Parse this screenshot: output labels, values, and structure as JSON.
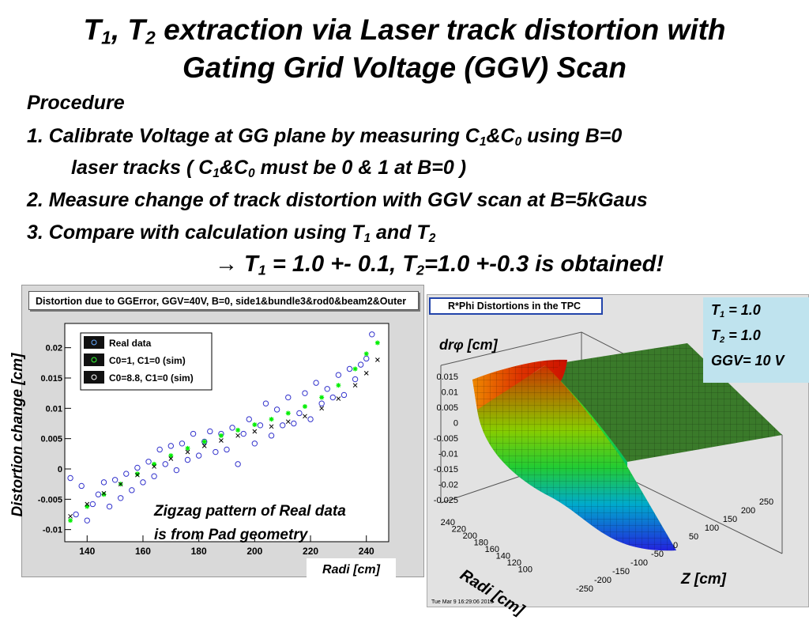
{
  "title": {
    "line1_a": "T",
    "line1_sub1": "1",
    "line1_b": ", T",
    "line1_sub2": "2",
    "line1_c": " extraction via Laser track distortion with",
    "line2": "Gating Grid Voltage (GGV) Scan"
  },
  "procedure": {
    "heading": "Procedure",
    "step1_a": "1.   Calibrate Voltage at GG plane  by measuring C",
    "step1_sub1": "1",
    "step1_b": "&C",
    "step1_sub2": "0",
    "step1_c": " using B=0",
    "step1b_a": "laser tracks  ( C",
    "step1b_sub1": "1",
    "step1b_b": "&C",
    "step1b_sub2": "0",
    "step1b_c": " must be 0 & 1 at B=0 )",
    "step2": "2.  Measure change of track distortion with GGV scan at B=5kGaus",
    "step3_a": "3.  Compare with calculation using T",
    "step3_sub1": "1",
    "step3_b": " and T",
    "step3_sub2": "2"
  },
  "result": {
    "arrow": "→",
    "a": " T",
    "sub1": "1",
    "b": " = 1.0 +- 0.1,  T",
    "sub2": "2",
    "c": "=1.0 +-0.3  is obtained!"
  },
  "left_plot": {
    "frame_title": "Distortion due to GGError, GGV=40V, B=0, side1&bundle3&rod0&beam2&Outer",
    "ylabel": "Distortion change  [cm]",
    "xlabel": "Radi [cm]",
    "annotation_1": "Zigzag pattern of Real data",
    "annotation_2": "is from Pad geometry"
  },
  "right_plot": {
    "frame_title": "R*Phi Distortions in the TPC",
    "zlabel_a": "dr",
    "zlabel_phi": "φ",
    "zlabel_b": " [cm]",
    "radi_label": "Radi [cm]",
    "z_label": "Z [cm]",
    "timestamp": "Tue Mar  9 16:29:06 2010",
    "z_ticks": [
      "0.015",
      "0.01",
      "0.005",
      "0",
      "-0.005",
      "-0.01",
      "-0.015",
      "-0.02",
      "-0.025"
    ],
    "radi_ticks": [
      "240",
      "220",
      "200",
      "180",
      "160",
      "140",
      "120",
      "100"
    ],
    "zaxis_ticks": [
      "-250",
      "-200",
      "-150",
      "-100",
      "-50",
      "0",
      "50",
      "100",
      "150",
      "200",
      "250"
    ]
  },
  "info_box": {
    "t1_a": "T",
    "t1_sub": "1",
    "t1_b": " = 1.0",
    "t2_a": "T",
    "t2_sub": "2",
    "t2_b": " = 1.0",
    "ggv": "GGV= 10 V"
  },
  "chart_data": [
    {
      "type": "scatter",
      "title": "Distortion due to GGError, GGV=40V, B=0, side1&bundle3&rod0&beam2&Outer",
      "xlabel": "Radi [cm]",
      "ylabel": "Distortion change  [cm]",
      "xlim": [
        132,
        248
      ],
      "ylim": [
        -0.012,
        0.024
      ],
      "x_ticks": [
        140,
        160,
        180,
        200,
        220,
        240
      ],
      "y_ticks": [
        -0.01,
        -0.005,
        0,
        0.005,
        0.01,
        0.015,
        0.02
      ],
      "y_tick_labels": [
        "-0.01",
        "-0.005",
        "0",
        "0.005",
        "0.01",
        "0.015",
        "0.02"
      ],
      "legend_position": "top-left",
      "series": [
        {
          "name": "Real data",
          "color": "#3333cc",
          "marker": "open-circle",
          "x": [
            134,
            136,
            138,
            140,
            142,
            144,
            146,
            148,
            150,
            152,
            154,
            156,
            158,
            160,
            162,
            164,
            166,
            168,
            170,
            172,
            174,
            176,
            178,
            180,
            182,
            184,
            186,
            188,
            190,
            192,
            194,
            196,
            198,
            200,
            202,
            204,
            206,
            208,
            210,
            212,
            214,
            216,
            218,
            220,
            222,
            224,
            226,
            228,
            230,
            232,
            234,
            236,
            238,
            240,
            242
          ],
          "y": [
            -0.0015,
            -0.0075,
            -0.0028,
            -0.0085,
            -0.0058,
            -0.0042,
            -0.0022,
            -0.0062,
            -0.0018,
            -0.0048,
            -0.0008,
            -0.0035,
            0.0002,
            -0.0022,
            0.0012,
            -0.0012,
            0.0032,
            0.0008,
            0.0038,
            -0.0002,
            0.0042,
            0.0015,
            0.0058,
            0.0022,
            0.0045,
            0.0062,
            0.0028,
            0.0058,
            0.0032,
            0.0068,
            0.0008,
            0.0058,
            0.0082,
            0.0042,
            0.0072,
            0.0108,
            0.0055,
            0.0098,
            0.0072,
            0.0118,
            0.0075,
            0.0092,
            0.0125,
            0.0082,
            0.0142,
            0.0108,
            0.0132,
            0.0118,
            0.0155,
            0.0122,
            0.0165,
            0.0148,
            0.0172,
            0.0182,
            0.0222
          ]
        },
        {
          "name": "C0=1, C1=0 (sim)",
          "color": "#00ee00",
          "marker": "star",
          "x": [
            134,
            140,
            146,
            152,
            158,
            164,
            170,
            176,
            182,
            188,
            194,
            200,
            206,
            212,
            218,
            224,
            230,
            236,
            240,
            244
          ],
          "y": [
            -0.0085,
            -0.0062,
            -0.0042,
            -0.0025,
            -0.0008,
            0.0008,
            0.0022,
            0.0034,
            0.0045,
            0.0055,
            0.0064,
            0.0073,
            0.0082,
            0.0092,
            0.0103,
            0.0118,
            0.0138,
            0.0165,
            0.019,
            0.0208
          ]
        },
        {
          "name": "C0=8.8, C1=0 (sim)",
          "color": "#000000",
          "marker": "cross",
          "x": [
            134,
            140,
            146,
            152,
            158,
            164,
            170,
            176,
            182,
            188,
            194,
            200,
            206,
            212,
            218,
            224,
            230,
            236,
            240,
            244
          ],
          "y": [
            -0.0078,
            -0.0058,
            -0.004,
            -0.0025,
            -0.001,
            0.0004,
            0.0017,
            0.0028,
            0.0038,
            0.0047,
            0.0055,
            0.0062,
            0.007,
            0.0078,
            0.0087,
            0.01,
            0.0116,
            0.0138,
            0.0158,
            0.018
          ]
        }
      ]
    },
    {
      "type": "surface",
      "title": "R*Phi Distortions in the TPC",
      "x_axis": {
        "label": "Radi [cm]",
        "range": [
          100,
          240
        ]
      },
      "y_axis": {
        "label": "Z [cm]",
        "range": [
          -250,
          250
        ]
      },
      "z_axis": {
        "label": "drφ [cm]",
        "range": [
          -0.025,
          0.015
        ]
      },
      "colormap": "rainbow"
    }
  ]
}
